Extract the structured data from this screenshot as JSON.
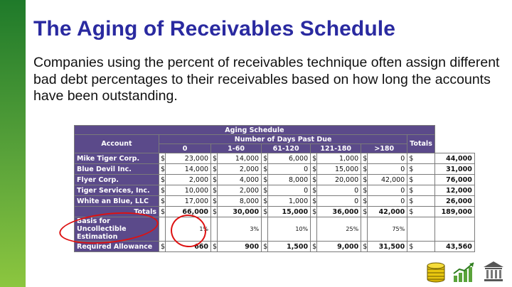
{
  "title": "The Aging of Receivables Schedule",
  "body": "Companies using the percent of receivables technique often assign different bad debt percentages to their receivables based on how long the accounts have been outstanding.",
  "schedule": {
    "caption": "Aging Schedule",
    "account_header": "Account",
    "days_header": "Number of Days Past Due",
    "totals_header": "Totals",
    "columns": [
      "0",
      "1-60",
      "61-120",
      "121-180",
      ">180"
    ],
    "rows": [
      {
        "account": "Mike Tiger Corp.",
        "values": [
          "23,000",
          "14,000",
          "6,000",
          "1,000",
          "0"
        ],
        "total": "44,000"
      },
      {
        "account": "Blue Devil Inc.",
        "values": [
          "14,000",
          "2,000",
          "0",
          "15,000",
          "0"
        ],
        "total": "31,000"
      },
      {
        "account": "Flyer Corp.",
        "values": [
          "2,000",
          "4,000",
          "8,000",
          "20,000",
          "42,000"
        ],
        "total": "76,000"
      },
      {
        "account": "Tiger Services, Inc.",
        "values": [
          "10,000",
          "2,000",
          "0",
          "0",
          "0"
        ],
        "total": "12,000"
      },
      {
        "account": "White an Blue, LLC",
        "values": [
          "17,000",
          "8,000",
          "1,000",
          "0",
          "0"
        ],
        "total": "26,000"
      }
    ],
    "totals_row": {
      "account": "Totals",
      "values": [
        "66,000",
        "30,000",
        "15,000",
        "36,000",
        "42,000"
      ],
      "total": "189,000"
    },
    "basis_row": {
      "account": "Basis for Uncollectible Estimation",
      "values": [
        "1%",
        "3%",
        "10%",
        "25%",
        "75%"
      ]
    },
    "allowance_row": {
      "account": "Required Allowance",
      "values": [
        "660",
        "900",
        "1,500",
        "9,000",
        "31,500"
      ],
      "total": "43,560"
    },
    "currency": "$"
  },
  "annotation_color": "#dd1111",
  "icons": [
    "coin-stack-icon",
    "growth-chart-icon",
    "bank-icon"
  ]
}
